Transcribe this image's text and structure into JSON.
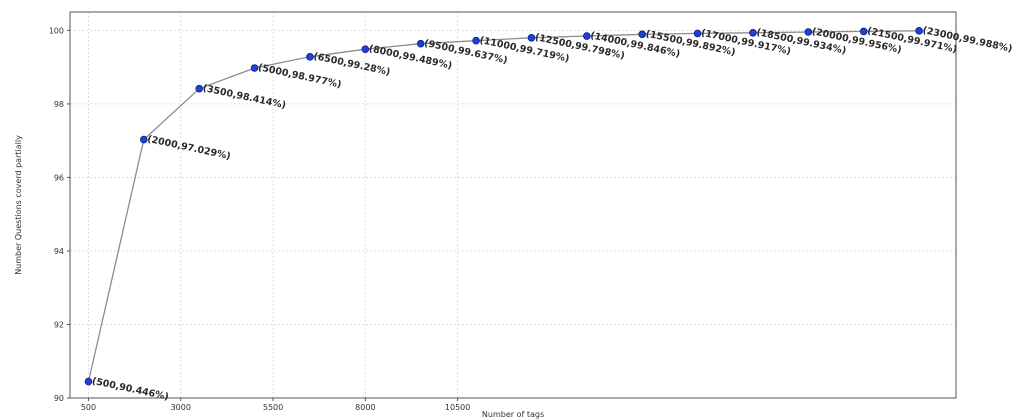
{
  "chart_data": {
    "type": "line",
    "title": "",
    "xlabel": "Number of tags",
    "ylabel": "Number Questions coverd partially",
    "xlim": [
      0,
      24000
    ],
    "ylim": [
      90,
      100.5
    ],
    "x_ticks": [
      500,
      3000,
      5500,
      8000,
      10500
    ],
    "y_ticks": [
      90,
      92,
      94,
      96,
      98,
      100
    ],
    "grid": true,
    "line_color": "#8c8c8c",
    "marker_color": "#1f3fd6",
    "marker_edge_color": "#0b1f8a",
    "x": [
      500,
      2000,
      3500,
      5000,
      6500,
      8000,
      9500,
      11000,
      12500,
      14000,
      15500,
      17000,
      18500,
      20000,
      21500,
      23000
    ],
    "y": [
      90.446,
      97.029,
      98.414,
      98.977,
      99.28,
      99.489,
      99.637,
      99.719,
      99.798,
      99.846,
      99.892,
      99.917,
      99.934,
      99.956,
      99.971,
      99.988
    ],
    "point_labels": [
      "(500,90.446%)",
      "(2000,97.029%)",
      "(3500,98.414%)",
      "(5000,98.977%)",
      "(6500,99.28%)",
      "(8000,99.489%)",
      "(9500,99.637%)",
      "(11000,99.719%)",
      "(12500,99.798%)",
      "(14000,99.846%)",
      "(15500,99.892%)",
      "(17000,99.917%)",
      "(18500,99.934%)",
      "(20000,99.956%)",
      "(21500,99.971%)",
      "(23000,99.988%)"
    ]
  }
}
